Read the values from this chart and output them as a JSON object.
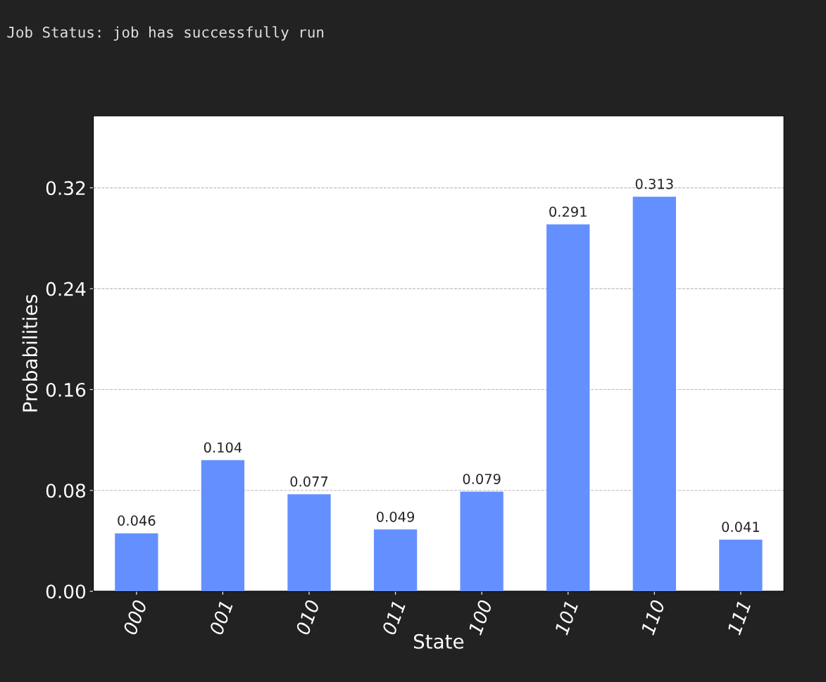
{
  "chart_data": {
    "type": "bar",
    "annotations": [
      "Job Status: job has successfully run"
    ],
    "xlabel": "State",
    "ylabel": "Probabilities",
    "categories": [
      "000",
      "001",
      "010",
      "011",
      "100",
      "101",
      "110",
      "111"
    ],
    "values": [
      0.046,
      0.104,
      0.077,
      0.049,
      0.079,
      0.291,
      0.313,
      0.041
    ],
    "color": "#648fff",
    "data_labels": true,
    "ylim": [
      0,
      0.377
    ],
    "yticks": [
      {
        "value": 0,
        "label": "0.00"
      },
      {
        "value": 0.08,
        "label": "0.08"
      },
      {
        "value": 0.16,
        "label": "0.16"
      },
      {
        "value": 0.24,
        "label": "0.24"
      },
      {
        "value": 0.32,
        "label": "0.32"
      }
    ],
    "grid": "y"
  }
}
